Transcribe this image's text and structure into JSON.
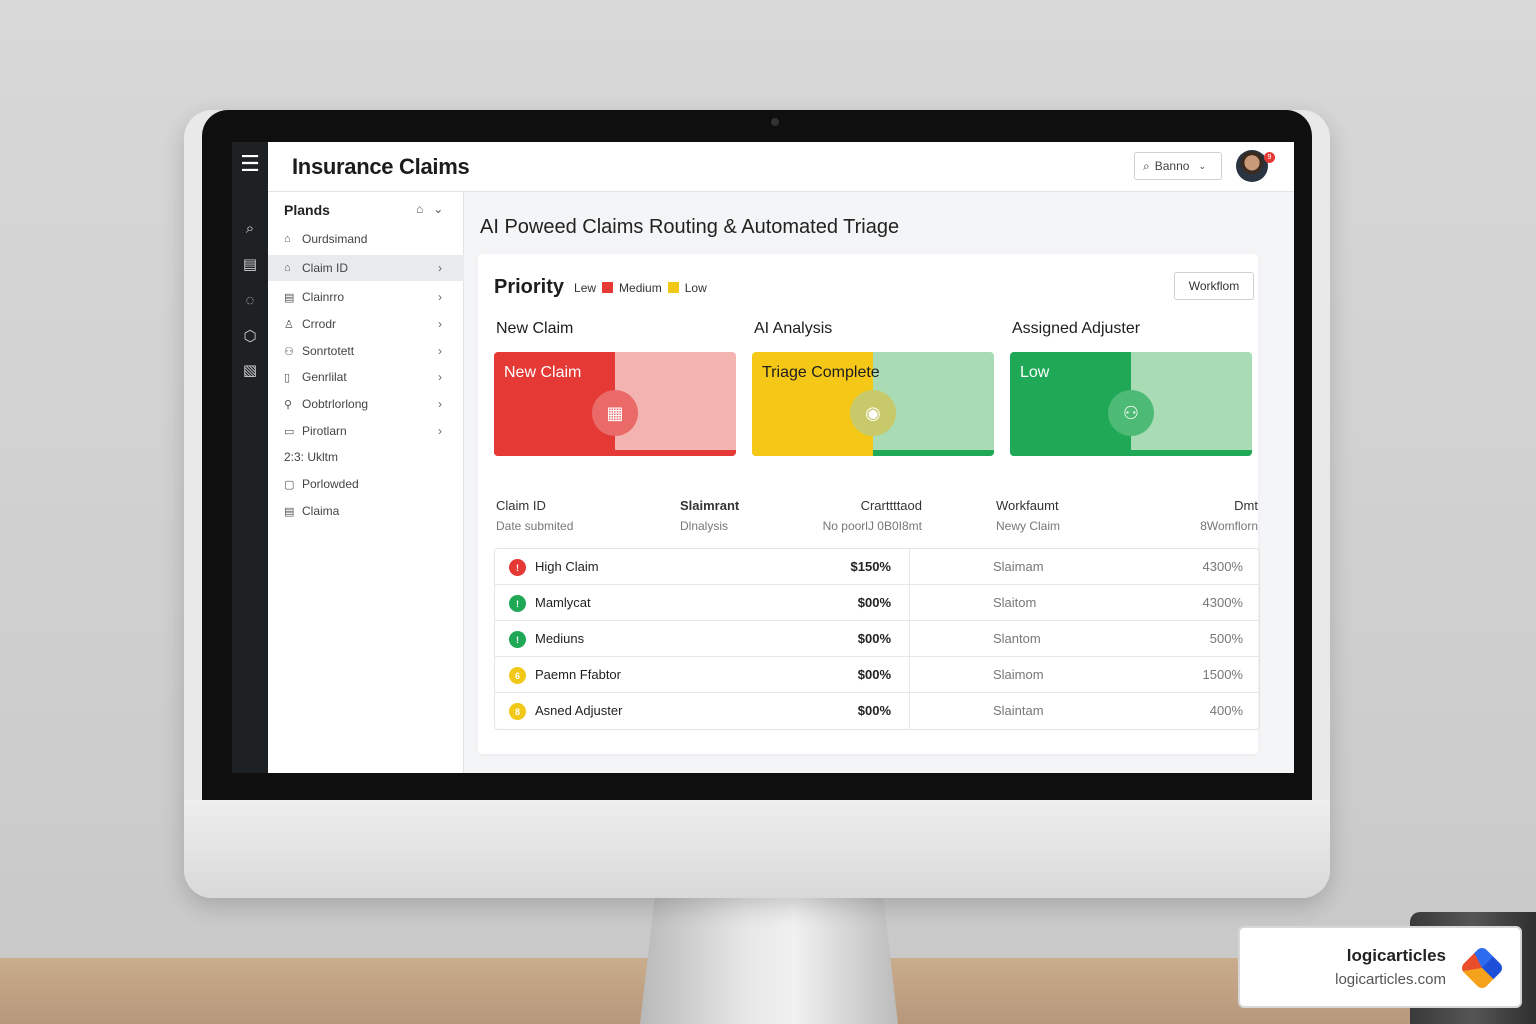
{
  "app": {
    "title": "Insurance Claims"
  },
  "header": {
    "search_label": "Banno",
    "notification_count": "9"
  },
  "sidebar": {
    "heading": "Plands",
    "items": [
      {
        "label": "Ourdsimand",
        "icon": "home-icon",
        "chevron": false
      },
      {
        "label": "Claim ID",
        "icon": "home-icon",
        "chevron": true,
        "active": true
      },
      {
        "label": "Clainrro",
        "icon": "document-icon",
        "chevron": true
      },
      {
        "label": "Crrodr",
        "icon": "user-icon",
        "chevron": true
      },
      {
        "label": "Sonrtotett",
        "icon": "people-icon",
        "chevron": true
      },
      {
        "label": "Genrlilat",
        "icon": "file-icon",
        "chevron": true
      },
      {
        "label": "Oobtrlorlong",
        "icon": "link-icon",
        "chevron": true
      },
      {
        "label": "Pirotlarn",
        "icon": "list-icon",
        "chevron": true
      },
      {
        "label": "2:3: Ukltm",
        "icon": "",
        "chevron": false
      },
      {
        "label": "Porlowded",
        "icon": "folder-icon",
        "chevron": false
      },
      {
        "label": "Claima",
        "icon": "document-icon",
        "chevron": false
      }
    ]
  },
  "main": {
    "title": "AI Poweed Claims Routing & Automated Triage",
    "priority": {
      "label": "Priority",
      "legend": [
        {
          "label": "Lew",
          "color": ""
        },
        {
          "label": "Medium",
          "color": "#e53935"
        },
        {
          "label": "Low",
          "color": "#f2c818"
        }
      ]
    },
    "workflow_button": "Workflom",
    "stages": [
      {
        "heading": "New Claim",
        "text": "New Claim",
        "color": "#e53935",
        "light": "#f3b3b1"
      },
      {
        "heading": "AI Analysis",
        "text": "Triage Complete",
        "color": "#f5c818",
        "light": "#a9dcb4"
      },
      {
        "heading": "Assigned Adjuster",
        "text": "Low",
        "color": "#1fa855",
        "light": "#a9dcb4"
      }
    ],
    "table": {
      "headers": [
        {
          "title": "Claim ID",
          "sub": "Date submited"
        },
        {
          "title": "Slaimrant",
          "sub": "Dlnalysis"
        },
        {
          "title": "Crarttttaod",
          "sub": "No poorlJ 0B0I8mt"
        },
        {
          "title": "Workfaumt",
          "sub": "Newy Claim"
        },
        {
          "title": "Dmt",
          "sub": "8Womflorn"
        }
      ],
      "rows": [
        {
          "name": "High Claim",
          "amount": "$150%",
          "status": "Slaimam",
          "pct": "4300%",
          "dot": "#e53935",
          "glyph": "!"
        },
        {
          "name": "Mamlycat",
          "amount": "$00%",
          "status": "Slaitom",
          "pct": "4300%",
          "dot": "#1fa855",
          "glyph": "!"
        },
        {
          "name": "Mediuns",
          "amount": "$00%",
          "status": "Slantom",
          "pct": "500%",
          "dot": "#1fa855",
          "glyph": "!"
        },
        {
          "name": "Paemn Ffabtor",
          "amount": "$00%",
          "status": "Slaimom",
          "pct": "1500%",
          "dot": "#f2c818",
          "glyph": "6"
        },
        {
          "name": "Asned Adjuster",
          "amount": "$00%",
          "status": "Slaintam",
          "pct": "400%",
          "dot": "#f2c818",
          "glyph": "8"
        }
      ]
    }
  },
  "watermark": {
    "name": "logicarticles",
    "url": "logicarticles.com"
  }
}
